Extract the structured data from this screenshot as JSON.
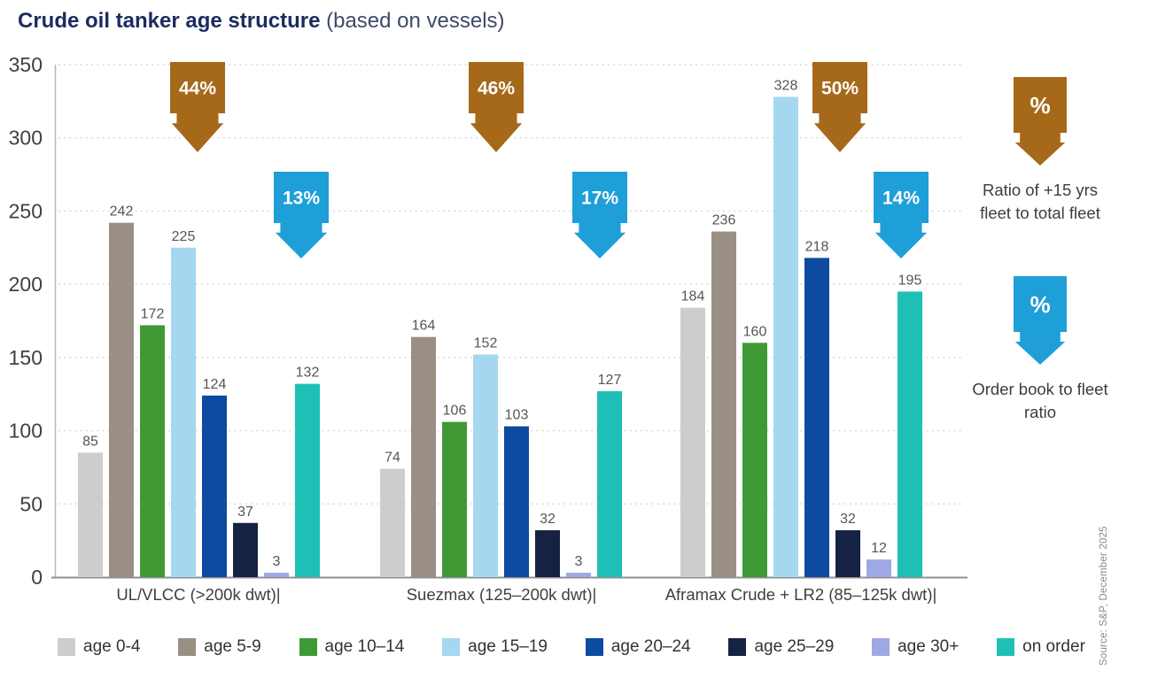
{
  "title": {
    "main": "Crude oil tanker age structure",
    "sub": "(based on vessels)"
  },
  "chart_data": {
    "type": "bar",
    "title": "Crude oil tanker age structure (based on vessels)",
    "xlabel": "",
    "ylabel": "",
    "ylim": [
      0,
      350
    ],
    "ytick_step": 50,
    "grid": "horizontal-dotted",
    "legend_position": "bottom",
    "categories": [
      "UL/VLCC (>200k dwt)|",
      "Suezmax (125–200k dwt)|",
      "Aframax Crude + LR2 (85–125k dwt)|"
    ],
    "series": [
      {
        "name": "age 0-4",
        "color": "#cdcdcd",
        "values": [
          85,
          74,
          184
        ]
      },
      {
        "name": "age 5-9",
        "color": "#998f85",
        "values": [
          242,
          164,
          236
        ]
      },
      {
        "name": "age 10–14",
        "color": "#3f9a35",
        "values": [
          172,
          106,
          160
        ]
      },
      {
        "name": "age 15–19",
        "color": "#a5d8f0",
        "values": [
          225,
          152,
          328
        ]
      },
      {
        "name": "age 20–24",
        "color": "#0d4ba0",
        "values": [
          124,
          103,
          218
        ]
      },
      {
        "name": "age 25–29",
        "color": "#152244",
        "values": [
          37,
          32,
          32
        ]
      },
      {
        "name": "age 30+",
        "color": "#9ea8e3",
        "values": [
          3,
          3,
          12
        ]
      },
      {
        "name": "on order",
        "color": "#1ec0b5",
        "values": [
          132,
          127,
          195
        ]
      }
    ],
    "annotations": {
      "fleet_ratio_percent": {
        "color": "#a6691a",
        "text_color": "#ffffff",
        "values": [
          "44%",
          "46%",
          "50%"
        ]
      },
      "orderbook_ratio_percent": {
        "color": "#1e9fd8",
        "text_color": "#ffffff",
        "values": [
          "13%",
          "17%",
          "14%"
        ]
      }
    }
  },
  "right_panel": {
    "fleet_symbol": "%",
    "fleet_label": "Ratio of +15 yrs fleet to total fleet",
    "orderbook_symbol": "%",
    "orderbook_label": "Order book to fleet ratio"
  },
  "source": "Source: S&P, December 2025",
  "icons": {
    "fleet_arrow": "down-arrow-badge-icon",
    "orderbook_arrow": "down-arrow-badge-icon"
  }
}
